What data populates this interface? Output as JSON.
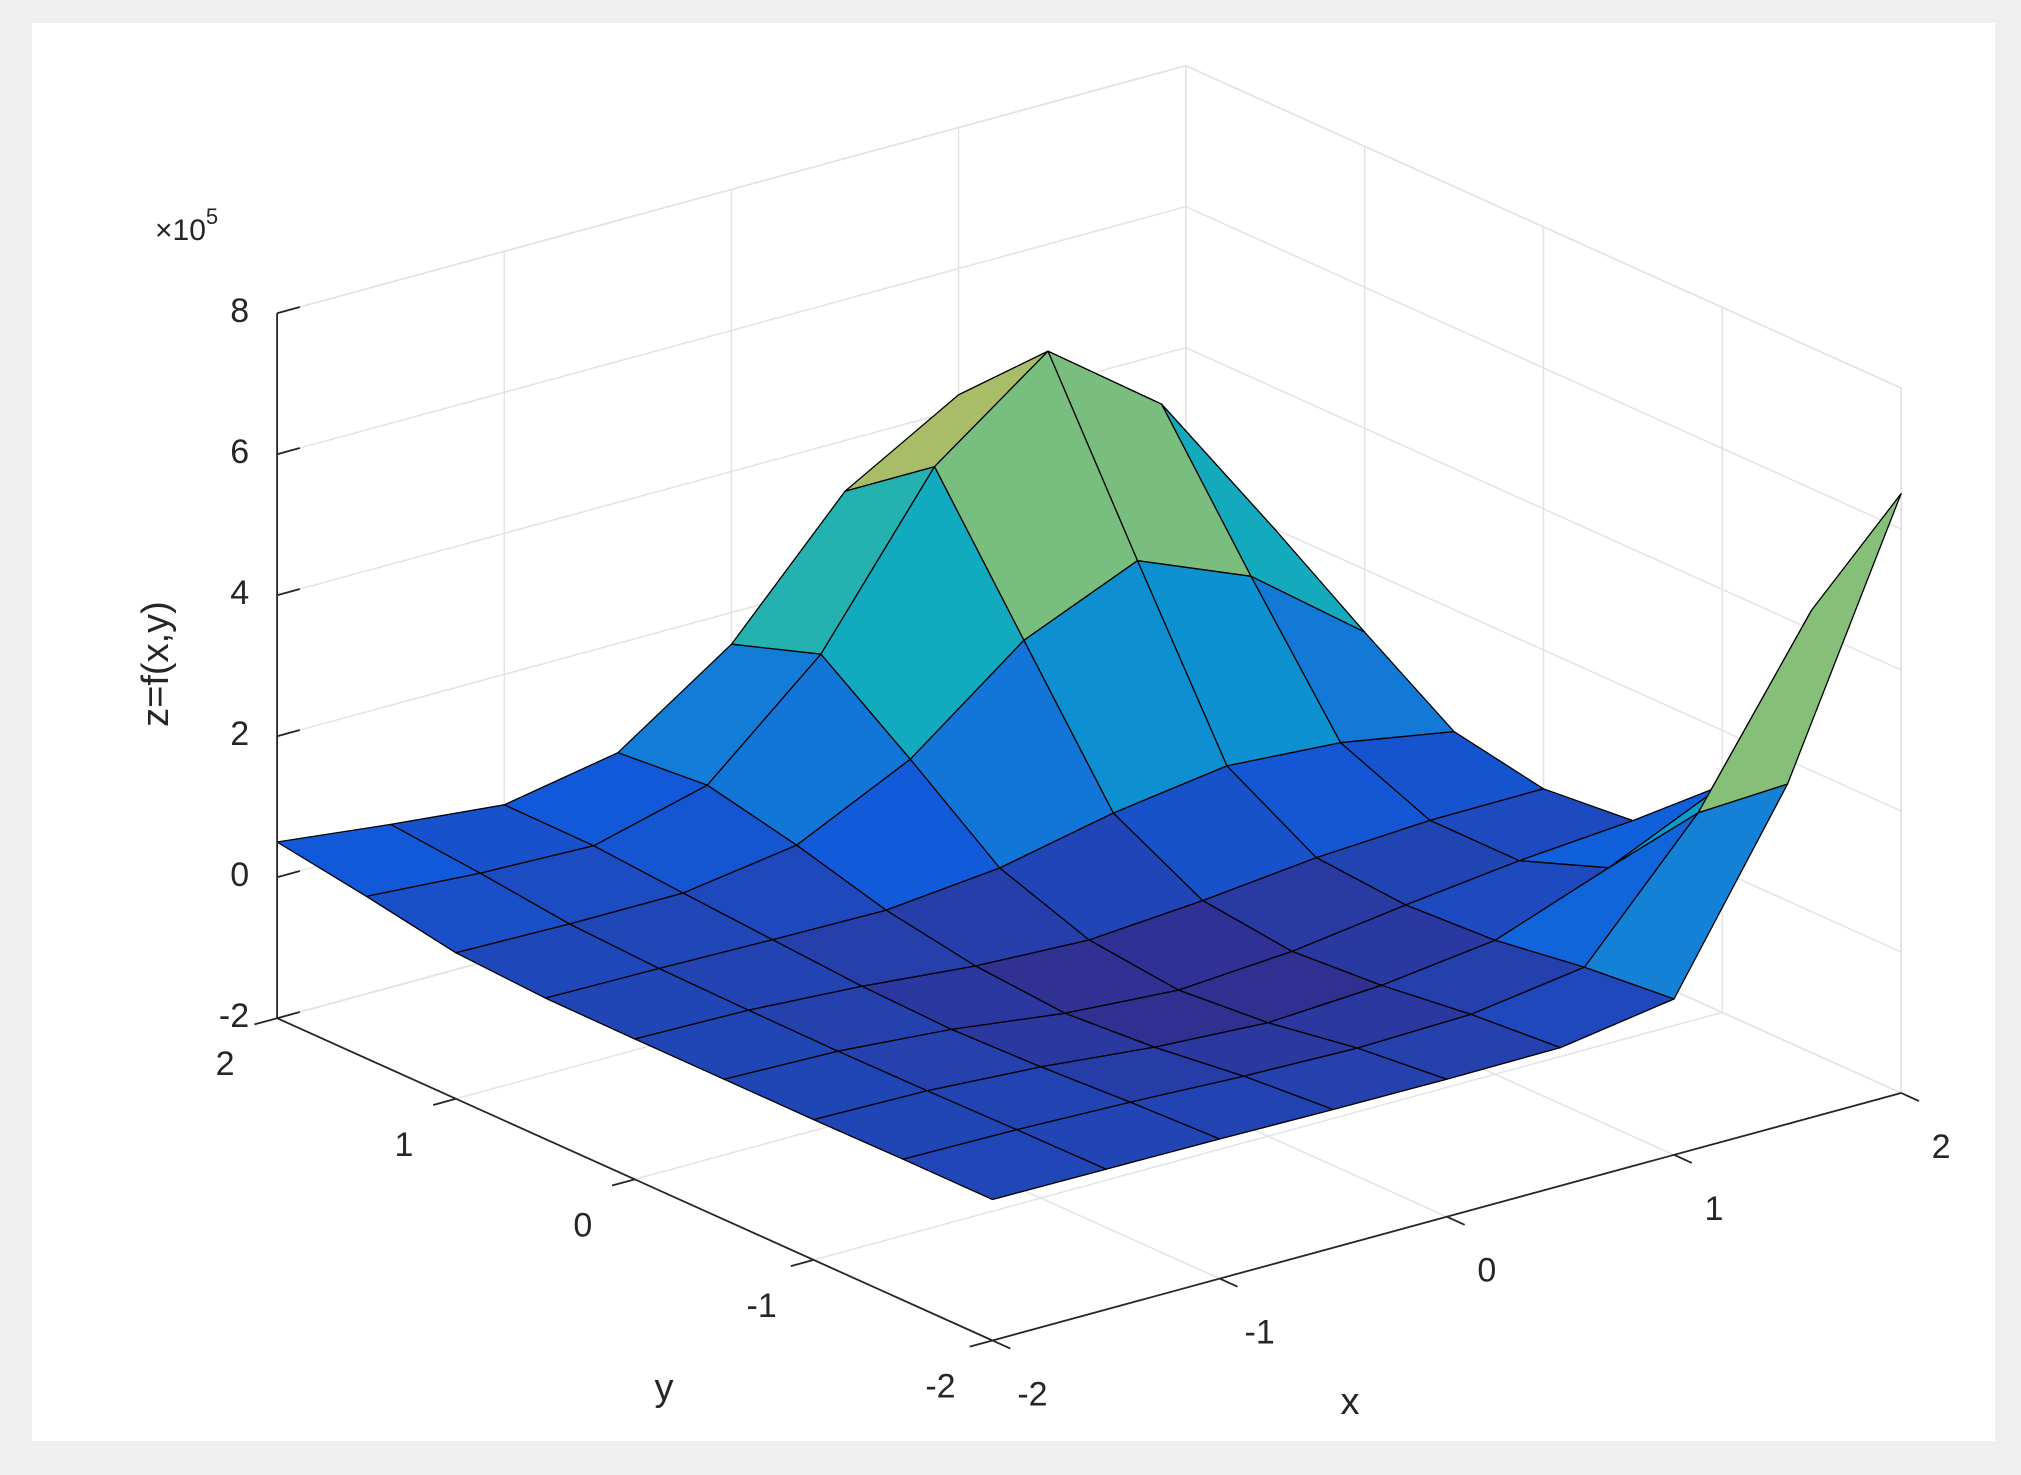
{
  "chart_data": {
    "type": "surface",
    "xlabel": "x",
    "ylabel": "y",
    "zlabel": "z=f(x,y)",
    "z_multiplier": "×10",
    "z_multiplier_exponent": "5",
    "x": [
      -2,
      -1.5,
      -1,
      -0.5,
      0,
      0.5,
      1,
      1.5,
      2
    ],
    "y": [
      -2,
      -1.5,
      -1,
      -0.5,
      0,
      0.5,
      1,
      1.5,
      2
    ],
    "z": [
      [
        0.0,
        -0.01,
        -0.02,
        -0.04,
        -0.05,
        -0.04,
        0.21,
        2.82,
        6.5
      ],
      [
        0.0,
        -0.02,
        -0.07,
        -0.14,
        -0.18,
        -0.14,
        0.09,
        1.84,
        4.28
      ],
      [
        -0.01,
        -0.04,
        -0.14,
        -0.3,
        -0.39,
        -0.3,
        -0.1,
        0.49,
        1.22
      ],
      [
        -0.01,
        -0.05,
        -0.18,
        -0.39,
        -0.5,
        -0.39,
        -0.17,
        0.02,
        0.15
      ],
      [
        -0.01,
        -0.04,
        -0.14,
        -0.29,
        -0.36,
        -0.24,
        -0.07,
        0.02,
        0.03
      ],
      [
        0.0,
        -0.02,
        -0.05,
        -0.07,
        0.09,
        0.43,
        0.66,
        0.55,
        0.27
      ],
      [
        0.07,
        0.04,
        0.04,
        0.28,
        1.06,
        2.31,
        3.0,
        2.34,
        1.11
      ],
      [
        0.3,
        0.19,
        0.14,
        0.56,
        1.98,
        4.2,
        5.4,
        4.21,
        1.99
      ],
      [
        0.5,
        0.31,
        0.15,
        0.45,
        1.55,
        3.28,
        4.21,
        3.28,
        1.55
      ]
    ],
    "xlim": [
      -2,
      2
    ],
    "ylim": [
      -2,
      2
    ],
    "zlim": [
      -2,
      8
    ],
    "xticks": [
      -2,
      -1,
      0,
      1,
      2
    ],
    "yticks": [
      -2,
      -1,
      0,
      1,
      2
    ],
    "zticks": [
      -2,
      0,
      2,
      4,
      6,
      8
    ],
    "grid": true,
    "colormap": "parula",
    "edge_color": "#000000"
  }
}
